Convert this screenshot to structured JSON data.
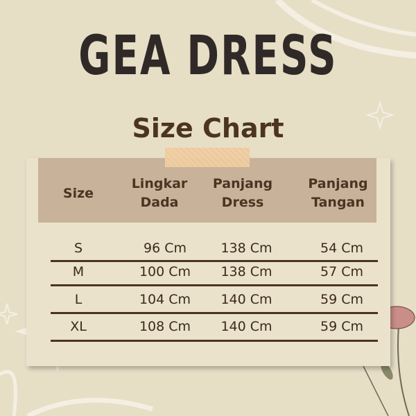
{
  "title": "GEA DRESS",
  "subtitle": "Size Chart",
  "table": {
    "headers": [
      [
        "Size",
        ""
      ],
      [
        "Lingkar",
        "Dada"
      ],
      [
        "Panjang",
        "Dress"
      ],
      [
        "Panjang",
        "Tangan"
      ]
    ],
    "rows": [
      [
        "S",
        "96 Cm",
        "138 Cm",
        "54 Cm"
      ],
      [
        "M",
        "100 Cm",
        "138 Cm",
        "57 Cm"
      ],
      [
        "L",
        "104 Cm",
        "140 Cm",
        "59 Cm"
      ],
      [
        "XL",
        "108 Cm",
        "140 Cm",
        "59 Cm"
      ]
    ]
  },
  "colors": {
    "background": "#e7dec6",
    "header": "#c8b29a",
    "text": "#4b3421",
    "tape": "#f2cfa4"
  }
}
